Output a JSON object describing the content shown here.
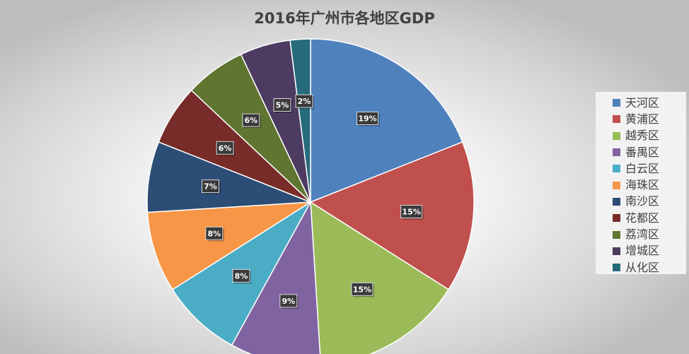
{
  "chart_data": {
    "type": "pie",
    "title": "2016年广州市各地区GDP",
    "legend_position": "right",
    "slices": [
      {
        "name": "天河区",
        "value": 19,
        "label": "19%",
        "color": "#4f81bd"
      },
      {
        "name": "黄浦区",
        "value": 15,
        "label": "15%",
        "color": "#c0504d"
      },
      {
        "name": "越秀区",
        "value": 15,
        "label": "15%",
        "color": "#9bbb59"
      },
      {
        "name": "番禺区",
        "value": 9,
        "label": "9%",
        "color": "#8064a2"
      },
      {
        "name": "白云区",
        "value": 8,
        "label": "8%",
        "color": "#4bacc6"
      },
      {
        "name": "海珠区",
        "value": 8,
        "label": "8%",
        "color": "#f79646"
      },
      {
        "name": "南沙区",
        "value": 7,
        "label": "7%",
        "color": "#2c4d75"
      },
      {
        "name": "花都区",
        "value": 6,
        "label": "6%",
        "color": "#772c2a"
      },
      {
        "name": "荔湾区",
        "value": 6,
        "label": "6%",
        "color": "#5f7530"
      },
      {
        "name": "增城区",
        "value": 5,
        "label": "5%",
        "color": "#4d3b62"
      },
      {
        "name": "从化区",
        "value": 2,
        "label": "2%",
        "color": "#276a7c"
      }
    ]
  }
}
